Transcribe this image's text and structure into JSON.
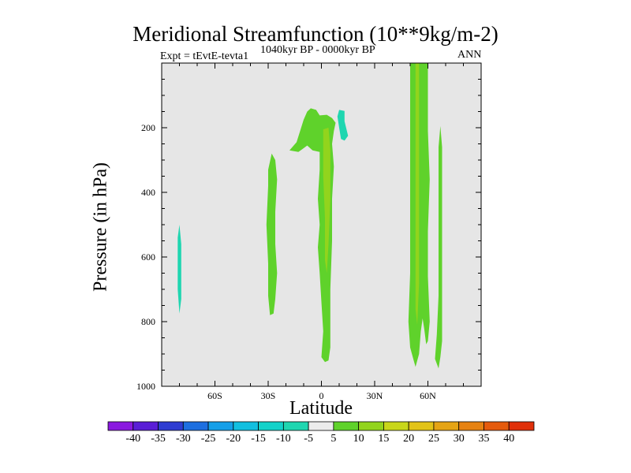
{
  "chart_data": {
    "type": "heatmap",
    "title": "Meridional Streamfunction (10**9kg/m-2)",
    "subtitle_left": "Expt = tEvtE-tevta1",
    "subtitle_center": "1040kyr BP - 0000kyr BP",
    "subtitle_right": "ANN",
    "xlabel": "Latitude",
    "ylabel": "Pressure (in hPa)",
    "x_range": [
      -90,
      90
    ],
    "y_range": [
      0,
      1000
    ],
    "x_ticks": [
      {
        "value": -60,
        "label": "60S"
      },
      {
        "value": -30,
        "label": "30S"
      },
      {
        "value": 0,
        "label": "0"
      },
      {
        "value": 30,
        "label": "30N"
      },
      {
        "value": 60,
        "label": "60N"
      }
    ],
    "y_ticks": [
      {
        "value": 200,
        "label": "200"
      },
      {
        "value": 400,
        "label": "400"
      },
      {
        "value": 600,
        "label": "600"
      },
      {
        "value": 800,
        "label": "800"
      },
      {
        "value": 1000,
        "label": "1000"
      }
    ],
    "background_color": "#e6e6e6",
    "colorbar": {
      "labels": [
        "-40",
        "-35",
        "-30",
        "-25",
        "-20",
        "-15",
        "-10",
        "-5",
        "5",
        "10",
        "15",
        "20",
        "25",
        "30",
        "35",
        "40"
      ],
      "colors": [
        "#8a19e0",
        "#5a1ed6",
        "#2f3dd1",
        "#1d6fe0",
        "#159fe8",
        "#12bfe0",
        "#13d2c9",
        "#1fd6b0",
        "#ececec",
        "#5fd22b",
        "#92d41d",
        "#c8d61a",
        "#e2c318",
        "#e5a415",
        "#e68212",
        "#e55b0d",
        "#e0300a"
      ]
    },
    "contours": [
      {
        "name": "plus5-shallow-north",
        "level": 5,
        "color": "#5fd22b",
        "points": [
          [
            -13,
            275
          ],
          [
            -18,
            270
          ],
          [
            -14,
            245
          ],
          [
            -12,
            210
          ],
          [
            -10,
            175
          ],
          [
            -8,
            150
          ],
          [
            -6,
            140
          ],
          [
            -3,
            145
          ],
          [
            -1,
            162
          ],
          [
            3,
            160
          ],
          [
            6,
            170
          ],
          [
            8,
            185
          ],
          [
            7,
            210
          ],
          [
            6,
            250
          ],
          [
            7,
            320
          ],
          [
            6,
            420
          ],
          [
            6,
            550
          ],
          [
            5,
            700
          ],
          [
            5,
            800
          ],
          [
            5,
            880
          ],
          [
            4,
            920
          ],
          [
            2,
            925
          ],
          [
            0,
            910
          ],
          [
            1,
            830
          ],
          [
            0,
            740
          ],
          [
            -1,
            650
          ],
          [
            -2,
            570
          ],
          [
            -1,
            500
          ],
          [
            -2,
            420
          ],
          [
            -1,
            330
          ],
          [
            -1,
            275
          ],
          [
            -5,
            270
          ],
          [
            -8,
            255
          ]
        ]
      },
      {
        "name": "plus10-deep-equator",
        "level": 10,
        "color": "#92d41d",
        "points": [
          [
            1,
            205
          ],
          [
            4,
            200
          ],
          [
            5,
            270
          ],
          [
            5,
            420
          ],
          [
            4,
            560
          ],
          [
            3,
            650
          ],
          [
            2,
            610
          ],
          [
            2,
            480
          ],
          [
            1,
            350
          ]
        ]
      },
      {
        "name": "plus5-south-30",
        "level": 5,
        "color": "#5fd22b",
        "points": [
          [
            -28,
            280
          ],
          [
            -26,
            300
          ],
          [
            -25,
            360
          ],
          [
            -26,
            460
          ],
          [
            -26,
            560
          ],
          [
            -25,
            650
          ],
          [
            -26,
            730
          ],
          [
            -27,
            775
          ],
          [
            -29,
            780
          ],
          [
            -30,
            720
          ],
          [
            -30,
            620
          ],
          [
            -31,
            500
          ],
          [
            -30,
            380
          ],
          [
            -30,
            330
          ]
        ]
      },
      {
        "name": "minus5-upper-north",
        "level": -5,
        "color": "#1fd6b0",
        "points": [
          [
            10,
            145
          ],
          [
            13,
            148
          ],
          [
            13,
            180
          ],
          [
            15,
            225
          ],
          [
            13,
            240
          ],
          [
            11,
            235
          ],
          [
            10,
            200
          ],
          [
            9,
            165
          ]
        ]
      },
      {
        "name": "minus5-south-polar",
        "level": -5,
        "color": "#1fd6b0",
        "points": [
          [
            -80,
            500
          ],
          [
            -79,
            560
          ],
          [
            -79,
            650
          ],
          [
            -79,
            730
          ],
          [
            -80,
            775
          ],
          [
            -81,
            700
          ],
          [
            -81,
            600
          ],
          [
            -81,
            540
          ]
        ]
      },
      {
        "name": "plus5-north-50-60",
        "level": 5,
        "color": "#5fd22b",
        "points": [
          [
            50,
            0
          ],
          [
            60,
            0
          ],
          [
            60,
            210
          ],
          [
            61,
            360
          ],
          [
            60,
            520
          ],
          [
            60,
            660
          ],
          [
            61,
            800
          ],
          [
            60,
            860
          ],
          [
            59,
            870
          ],
          [
            58,
            825
          ],
          [
            57,
            790
          ],
          [
            56,
            830
          ],
          [
            55,
            900
          ],
          [
            53,
            940
          ],
          [
            52,
            920
          ],
          [
            50,
            880
          ],
          [
            49,
            800
          ],
          [
            50,
            650
          ],
          [
            50,
            500
          ],
          [
            50,
            300
          ],
          [
            50,
            150
          ]
        ]
      },
      {
        "name": "plus10-north-core",
        "level": 10,
        "color": "#92d41d",
        "points": [
          [
            53,
            0
          ],
          [
            55,
            0
          ],
          [
            55,
            300
          ],
          [
            55,
            500
          ],
          [
            55,
            680
          ],
          [
            54,
            810
          ],
          [
            53,
            760
          ],
          [
            53,
            600
          ],
          [
            53,
            400
          ],
          [
            53,
            200
          ]
        ]
      },
      {
        "name": "plus5-north-67",
        "level": 5,
        "color": "#5fd22b",
        "points": [
          [
            67,
            195
          ],
          [
            68,
            260
          ],
          [
            68,
            420
          ],
          [
            68,
            600
          ],
          [
            68,
            760
          ],
          [
            68,
            860
          ],
          [
            67,
            910
          ],
          [
            66,
            945
          ],
          [
            64,
            915
          ],
          [
            65,
            840
          ],
          [
            66,
            720
          ],
          [
            66,
            560
          ],
          [
            66,
            400
          ],
          [
            66,
            260
          ]
        ]
      }
    ]
  }
}
